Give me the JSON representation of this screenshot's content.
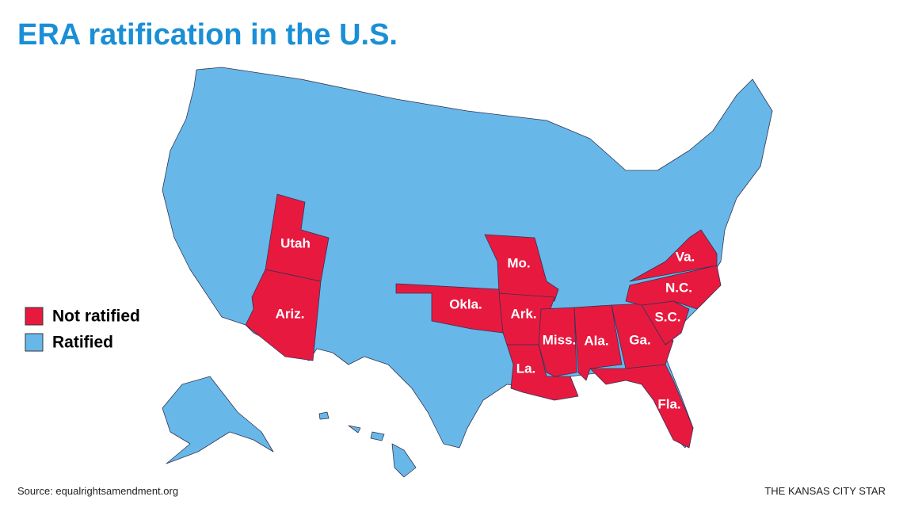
{
  "title": "ERA ratification in the U.S.",
  "legend": [
    {
      "label": "Not ratified",
      "color": "#e8193f"
    },
    {
      "label": "Ratified",
      "color": "#67b8e9"
    }
  ],
  "states": [
    {
      "label": "Utah"
    },
    {
      "label": "Ariz."
    },
    {
      "label": "Mo."
    },
    {
      "label": "Okla."
    },
    {
      "label": "Ark."
    },
    {
      "label": "La."
    },
    {
      "label": "Miss."
    },
    {
      "label": "Ala."
    },
    {
      "label": "Ga."
    },
    {
      "label": "Fla."
    },
    {
      "label": "S.C."
    },
    {
      "label": "N.C."
    },
    {
      "label": "Va."
    }
  ],
  "source": "Source: equalrightsamendment.org",
  "credit": "THE KANSAS CITY STAR"
}
